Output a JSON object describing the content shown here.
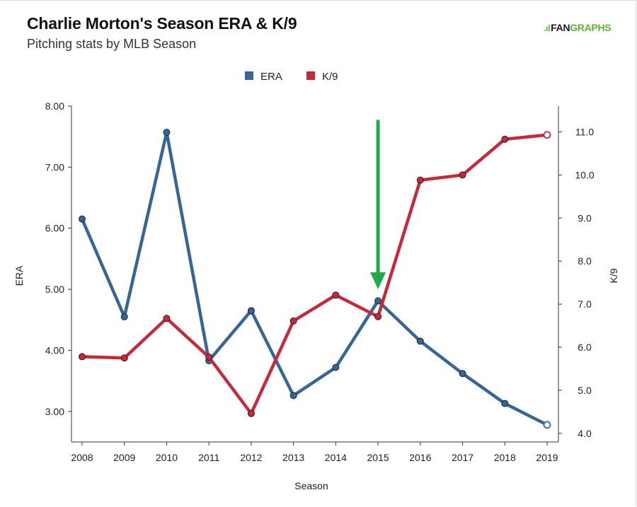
{
  "header": {
    "title": "Charlie Morton's Season ERA & K/9",
    "subtitle": "Pitching stats by MLB Season"
  },
  "brand": {
    "name_part1": "FAN",
    "name_part2": "GRAPHS"
  },
  "colors": {
    "era": "#35669a",
    "k9": "#c8283a",
    "arrow": "#1faa4c",
    "axis": "#333333"
  },
  "chart_data": {
    "type": "line",
    "xlabel": "Season",
    "ylabel_left": "ERA",
    "ylabel_right": "K/9",
    "x": [
      "2008",
      "2009",
      "2010",
      "2011",
      "2012",
      "2013",
      "2014",
      "2015",
      "2016",
      "2017",
      "2018",
      "2019"
    ],
    "ylim_left": [
      2.5,
      8.0
    ],
    "ylim_right": [
      3.8,
      11.6
    ],
    "yticks_left": [
      "3.00",
      "4.00",
      "5.00",
      "6.00",
      "7.00",
      "8.00"
    ],
    "yticks_right": [
      "4.0",
      "5.0",
      "6.0",
      "7.0",
      "8.0",
      "9.0",
      "10.0",
      "11.0"
    ],
    "legend_position": "top-center",
    "grid": false,
    "series": [
      {
        "name": "ERA",
        "axis": "left",
        "values": [
          6.15,
          4.55,
          7.57,
          3.83,
          4.65,
          3.26,
          3.72,
          4.81,
          4.15,
          3.62,
          3.13,
          2.78
        ]
      },
      {
        "name": "K/9",
        "axis": "right",
        "values": [
          5.78,
          5.75,
          6.67,
          5.77,
          4.46,
          6.61,
          7.21,
          6.71,
          9.88,
          10.0,
          10.83,
          10.93
        ]
      }
    ],
    "annotation": {
      "type": "arrow",
      "x": "2015",
      "from_era": 7.75,
      "to_era": 5.0
    }
  }
}
